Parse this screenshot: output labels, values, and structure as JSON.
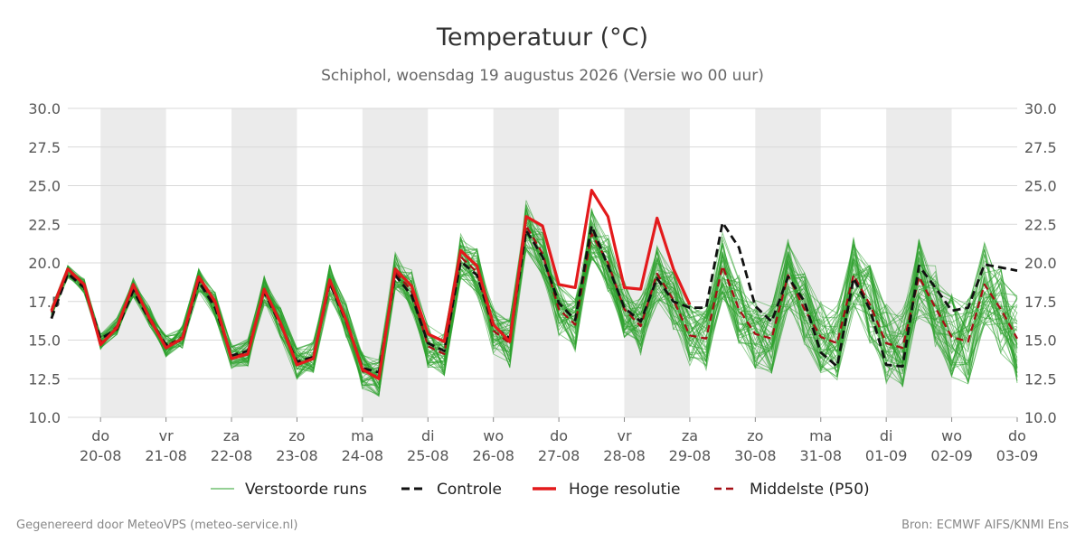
{
  "chart_data": {
    "type": "line",
    "title": "Temperatuur (°C)",
    "subtitle": "Schiphol, woensdag 19 augustus 2026 (Versie wo 00 uur)",
    "ylim": [
      10,
      30
    ],
    "y_ticks": [
      "10.0",
      "12.5",
      "15.0",
      "17.5",
      "20.0",
      "22.5",
      "25.0",
      "27.5",
      "30.0"
    ],
    "x_range": [
      0,
      15
    ],
    "x_ticks": [
      {
        "x": 1,
        "day": "do",
        "date": "20-08"
      },
      {
        "x": 2,
        "day": "vr",
        "date": "21-08"
      },
      {
        "x": 3,
        "day": "za",
        "date": "22-08"
      },
      {
        "x": 4,
        "day": "zo",
        "date": "23-08"
      },
      {
        "x": 5,
        "day": "ma",
        "date": "24-08"
      },
      {
        "x": 6,
        "day": "di",
        "date": "25-08"
      },
      {
        "x": 7,
        "day": "wo",
        "date": "26-08"
      },
      {
        "x": 8,
        "day": "do",
        "date": "27-08"
      },
      {
        "x": 9,
        "day": "vr",
        "date": "28-08"
      },
      {
        "x": 10,
        "day": "za",
        "date": "29-08"
      },
      {
        "x": 11,
        "day": "zo",
        "date": "30-08"
      },
      {
        "x": 12,
        "day": "ma",
        "date": "31-08"
      },
      {
        "x": 13,
        "day": "di",
        "date": "01-09"
      },
      {
        "x": 14,
        "day": "wo",
        "date": "02-09"
      },
      {
        "x": 15,
        "day": "do",
        "date": "03-09"
      }
    ],
    "shaded_days": [
      [
        1,
        2
      ],
      [
        3,
        4
      ],
      [
        5,
        6
      ],
      [
        7,
        8
      ],
      [
        9,
        10
      ],
      [
        11,
        12
      ],
      [
        13,
        14
      ]
    ],
    "grid": true,
    "legend_position": "bottom",
    "series": [
      {
        "name": "Hoge resolutie",
        "color": "#e31a1c",
        "style": "solid",
        "x": [
          0.25,
          0.5,
          0.75,
          1.0,
          1.25,
          1.5,
          1.75,
          2.0,
          2.25,
          2.5,
          2.75,
          3.0,
          3.25,
          3.5,
          3.75,
          4.0,
          4.25,
          4.5,
          4.75,
          5.0,
          5.25,
          5.5,
          5.75,
          6.0,
          6.25,
          6.5,
          6.75,
          7.0,
          7.25,
          7.5,
          7.75,
          8.0,
          8.25,
          8.5,
          8.75,
          9.0,
          9.25,
          9.5,
          9.75,
          10.0
        ],
        "y": [
          16.9,
          19.6,
          18.6,
          14.7,
          15.8,
          18.6,
          16.4,
          14.5,
          15.1,
          19.1,
          17.5,
          13.8,
          14.1,
          18.3,
          16.1,
          13.4,
          13.8,
          18.9,
          16.3,
          13.1,
          12.5,
          19.6,
          18.5,
          15.4,
          14.9,
          20.8,
          19.8,
          16.0,
          14.9,
          23.0,
          22.4,
          18.6,
          18.4,
          24.7,
          23.0,
          18.4,
          18.3,
          22.9,
          19.6,
          17.3
        ]
      },
      {
        "name": "Controle",
        "color": "#111111",
        "style": "dash",
        "x": [
          0.25,
          0.5,
          0.75,
          1.0,
          1.25,
          1.5,
          1.75,
          2.0,
          2.25,
          2.5,
          2.75,
          3.0,
          3.25,
          3.5,
          3.75,
          4.0,
          4.25,
          4.5,
          4.75,
          5.0,
          5.25,
          5.5,
          5.75,
          6.0,
          6.25,
          6.5,
          6.75,
          7.0,
          7.25,
          7.5,
          7.75,
          8.0,
          8.25,
          8.5,
          8.75,
          9.0,
          9.25,
          9.5,
          9.75,
          10.0,
          10.25,
          10.5,
          10.75,
          11.0,
          11.25,
          11.5,
          11.75,
          12.0,
          12.25,
          12.5,
          12.75,
          13.0,
          13.25,
          13.5,
          13.75,
          14.0,
          14.25,
          14.5,
          14.75,
          15.0
        ],
        "y": [
          16.4,
          19.3,
          18.4,
          15.1,
          15.7,
          18.2,
          16.3,
          14.7,
          15.0,
          18.8,
          17.1,
          14.0,
          14.3,
          18.1,
          16.0,
          13.6,
          13.9,
          18.7,
          16.2,
          13.2,
          12.9,
          19.2,
          17.9,
          14.8,
          14.3,
          20.1,
          19.2,
          15.9,
          15.1,
          22.1,
          20.4,
          17.4,
          16.3,
          22.4,
          19.8,
          17.1,
          16.2,
          19.0,
          17.5,
          17.1,
          17.1,
          22.6,
          21.0,
          17.2,
          16.2,
          19.1,
          17.5,
          14.2,
          13.3,
          19.0,
          17.0,
          13.4,
          13.3,
          19.8,
          18.4,
          16.9,
          17.1,
          19.9,
          19.7,
          19.5
        ]
      },
      {
        "name": "Middelste (P50)",
        "color": "#a50f15",
        "style": "dash",
        "x": [
          0.25,
          0.5,
          0.75,
          1.0,
          1.25,
          1.5,
          1.75,
          2.0,
          2.25,
          2.5,
          2.75,
          3.0,
          3.25,
          3.5,
          3.75,
          4.0,
          4.25,
          4.5,
          4.75,
          5.0,
          5.25,
          5.5,
          5.75,
          6.0,
          6.25,
          6.5,
          6.75,
          7.0,
          7.25,
          7.5,
          7.75,
          8.0,
          8.25,
          8.5,
          8.75,
          9.0,
          9.25,
          9.5,
          9.75,
          10.0,
          10.25,
          10.5,
          10.75,
          11.0,
          11.25,
          11.5,
          11.75,
          12.0,
          12.25,
          12.5,
          12.75,
          13.0,
          13.25,
          13.5,
          13.75,
          14.0,
          14.25,
          14.5,
          14.75,
          15.0
        ],
        "y": [
          16.8,
          19.4,
          18.5,
          14.9,
          15.9,
          18.4,
          16.5,
          14.6,
          15.2,
          18.9,
          17.3,
          13.9,
          14.2,
          18.2,
          16.1,
          13.5,
          13.9,
          18.8,
          16.3,
          13.0,
          12.6,
          19.4,
          18.2,
          14.6,
          14.1,
          20.4,
          19.4,
          15.6,
          14.8,
          22.4,
          20.6,
          17.0,
          16.0,
          21.9,
          20.0,
          17.0,
          15.9,
          19.3,
          17.6,
          15.3,
          15.1,
          19.8,
          17.0,
          15.4,
          15.1,
          19.2,
          17.0,
          15.2,
          14.8,
          19.2,
          17.3,
          14.8,
          14.5,
          19.1,
          17.1,
          15.2,
          14.9,
          18.6,
          17.0,
          15.1
        ]
      }
    ],
    "ensemble": {
      "name": "Verstoorde runs",
      "color": "#2ca02c",
      "members": 50
    }
  },
  "footer": {
    "left": "Gegenereerd door MeteoVPS (meteo-service.nl)",
    "right": "Bron: ECMWF AIFS/KNMI Ens"
  }
}
